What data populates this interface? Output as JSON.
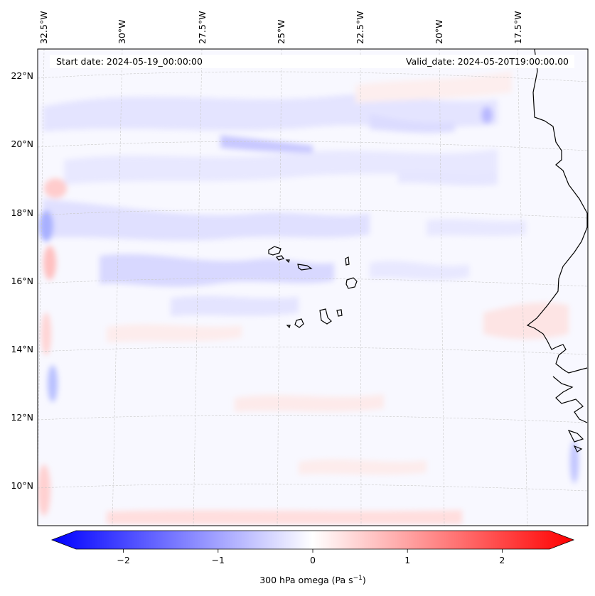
{
  "map": {
    "start_date": "Start date: 2024-05-19_00:00:00",
    "valid_date": "Valid_date: 2024-05-20T19:00:00.00",
    "top_lon_labels": [
      "32.5°W",
      "30°W",
      "27.5°W",
      "25°W",
      "22.5°W",
      "20°W",
      "17.5°W"
    ],
    "lat_labels": [
      "22°N",
      "20°N",
      "18°N",
      "16°N",
      "14°N",
      "12°N",
      "10°N"
    ],
    "gridlines": true,
    "projection": "lambert-conformal",
    "region": "Cabo Verde and West African coast",
    "field": "300 hPa vertical velocity (omega)"
  },
  "colorbar": {
    "label_text": "300 hPa omega (Pa s",
    "label_sup": "−1",
    "label_close": ")",
    "ticks": [
      "−2",
      "−1",
      "0",
      "1",
      "2"
    ],
    "tick_values": [
      -2,
      -1,
      0,
      1,
      2
    ],
    "range": [
      -2.5,
      2.5
    ],
    "extend": "both",
    "cmap": "bwr",
    "colors": {
      "low": "#0000ff",
      "mid": "#ffffff",
      "high": "#ff0000"
    }
  },
  "colors": {
    "coastline": "#000000",
    "gridline": "#c8c8c8",
    "frame": "#000000"
  }
}
